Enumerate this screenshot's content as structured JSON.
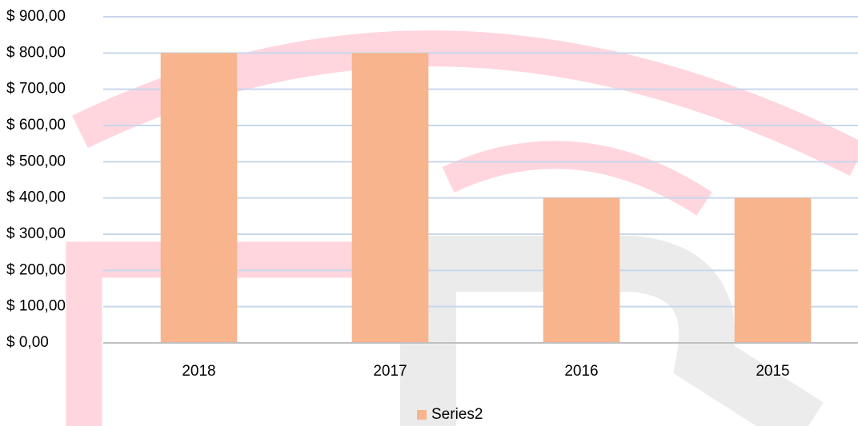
{
  "chart_data": {
    "type": "bar",
    "categories": [
      "2018",
      "2017",
      "2016",
      "2015"
    ],
    "series": [
      {
        "name": "Series2",
        "color": "#f8b48c",
        "values": [
          800,
          800,
          400,
          400
        ]
      }
    ],
    "ylim": [
      0,
      900
    ],
    "yticks": [
      {
        "value": 0,
        "label": "$ 0,00"
      },
      {
        "value": 100,
        "label": "$ 100,00"
      },
      {
        "value": 200,
        "label": "$ 200,00"
      },
      {
        "value": 300,
        "label": "$ 300,00"
      },
      {
        "value": 400,
        "label": "$ 400,00"
      },
      {
        "value": 500,
        "label": "$ 500,00"
      },
      {
        "value": 600,
        "label": "$ 600,00"
      },
      {
        "value": 700,
        "label": "$ 700,00"
      },
      {
        "value": 800,
        "label": "$ 800,00"
      },
      {
        "value": 900,
        "label": "$ 900,00"
      }
    ],
    "grid": true,
    "legend": "bottom"
  }
}
